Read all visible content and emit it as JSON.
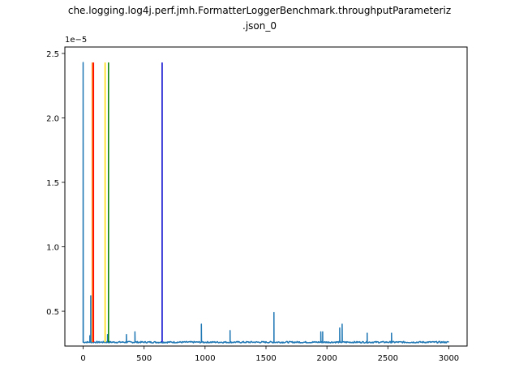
{
  "chart_data": {
    "type": "line",
    "title_line1": "che.logging.log4j.perf.jmh.FormatterLoggerBenchmark.throughputParameteriz",
    "title_line2": ".json_0",
    "offset_label": "1e−5",
    "xlim": [
      -150,
      3150
    ],
    "ylim": [
      2.3e-06,
      2.55e-05
    ],
    "x_ticks": [
      0,
      500,
      1000,
      1500,
      2000,
      2500,
      3000
    ],
    "x_tick_labels": [
      "0",
      "500",
      "1000",
      "1500",
      "2000",
      "2500",
      "3000"
    ],
    "y_ticks": [
      5e-06,
      1e-05,
      1.5e-05,
      2e-05,
      2.5e-05
    ],
    "y_tick_labels": [
      "0.5",
      "1.0",
      "1.5",
      "2.0",
      "2.5"
    ],
    "series": [
      {
        "color": "#1f77b4",
        "baseline": 2.6e-06,
        "x_end": 3000,
        "spikes": [
          {
            "x": 0,
            "y": 2.43e-05
          },
          {
            "x": 55,
            "y": 3.1e-06
          },
          {
            "x": 62,
            "y": 6.2e-06
          },
          {
            "x": 200,
            "y": 3.2e-06
          },
          {
            "x": 355,
            "y": 3.2e-06
          },
          {
            "x": 425,
            "y": 3.4e-06
          },
          {
            "x": 970,
            "y": 4e-06
          },
          {
            "x": 1205,
            "y": 3.5e-06
          },
          {
            "x": 1565,
            "y": 4.9e-06
          },
          {
            "x": 1950,
            "y": 3.4e-06
          },
          {
            "x": 1965,
            "y": 3.4e-06
          },
          {
            "x": 2105,
            "y": 3.7e-06
          },
          {
            "x": 2125,
            "y": 4e-06
          },
          {
            "x": 2330,
            "y": 3.3e-06
          },
          {
            "x": 2530,
            "y": 3.3e-06
          }
        ]
      }
    ],
    "vlines": [
      {
        "x": 75,
        "color": "#ff7f0e"
      },
      {
        "x": 85,
        "color": "#ff0000"
      },
      {
        "x": 180,
        "color": "#ffd700"
      },
      {
        "x": 208,
        "color": "#008000"
      },
      {
        "x": 648,
        "color": "#0000cc"
      }
    ],
    "vline_ymin": 2.6e-06,
    "vline_ymax": 2.43e-05
  }
}
